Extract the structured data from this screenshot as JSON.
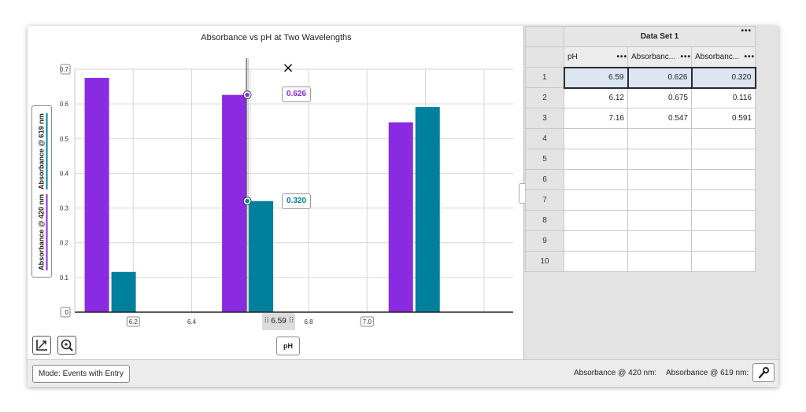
{
  "graph": {
    "title": "Absorbance vs pH at Two Wavelengths",
    "x_axis_title": "pH",
    "y_axis_labels": [
      "Absorbance @ 420 nm",
      "Absorbance @ 619 nm"
    ],
    "drag_label": "6.59",
    "tags": {
      "series1": "0.626",
      "series2": "0.320"
    },
    "close_glyph": "×"
  },
  "chart_data": {
    "type": "bar",
    "xlim": [
      6.0,
      7.5
    ],
    "ylim": [
      0,
      0.7
    ],
    "x_ticks": [
      {
        "value": 6.2,
        "label": "6.2",
        "boxed": true
      },
      {
        "value": 6.4,
        "label": "6.4",
        "boxed": false
      },
      {
        "value": 6.8,
        "label": "6.8",
        "boxed": false
      },
      {
        "value": 7.0,
        "label": "7.0",
        "boxed": true
      }
    ],
    "y_ticks": [
      {
        "value": 0,
        "label": "0",
        "boxed": true
      },
      {
        "value": 0.1,
        "label": "0.1",
        "boxed": false
      },
      {
        "value": 0.2,
        "label": "0.2",
        "boxed": false
      },
      {
        "value": 0.3,
        "label": "0.3",
        "boxed": false
      },
      {
        "value": 0.4,
        "label": "0.4",
        "boxed": false
      },
      {
        "value": 0.5,
        "label": "0.5",
        "boxed": false
      },
      {
        "value": 0.6,
        "label": "0.6",
        "boxed": false
      },
      {
        "value": 0.7,
        "label": "0.7",
        "boxed": true
      }
    ],
    "x": [
      6.12,
      6.59,
      7.16
    ],
    "series": [
      {
        "name": "Absorbance @ 420 nm",
        "values": [
          0.675,
          0.626,
          0.547
        ],
        "color": "#8a2be2"
      },
      {
        "name": "Absorbance @ 619 nm",
        "values": [
          0.116,
          0.32,
          0.591
        ],
        "color": "#00809d"
      }
    ],
    "cursor_x": 6.59,
    "grid": true
  },
  "table": {
    "title": "Data Set 1",
    "menu_glyph": "•••",
    "columns": [
      "pH",
      "Absorbanc...",
      "Absorbanc..."
    ],
    "row_numbers": [
      "1",
      "2",
      "3",
      "4",
      "5",
      "6",
      "7",
      "8",
      "9",
      "10"
    ],
    "rows": [
      [
        "6.59",
        "0.626",
        "0.320"
      ],
      [
        "6.12",
        "0.675",
        "0.116"
      ],
      [
        "7.16",
        "0.547",
        "0.591"
      ],
      [
        "",
        "",
        ""
      ],
      [
        "",
        "",
        ""
      ],
      [
        "",
        "",
        ""
      ],
      [
        "",
        "",
        ""
      ],
      [
        "",
        "",
        ""
      ],
      [
        "",
        "",
        ""
      ],
      [
        "",
        "",
        ""
      ]
    ]
  },
  "footer": {
    "mode_label": "Mode: Events with Entry",
    "readout_420": "Absorbance @ 420 nm:",
    "readout_619": "Absorbance @ 619 nm:"
  },
  "icons": {
    "autoscale": "axes-autoscale-icon",
    "zoom": "zoom-icon",
    "tool": "wrench-icon"
  }
}
